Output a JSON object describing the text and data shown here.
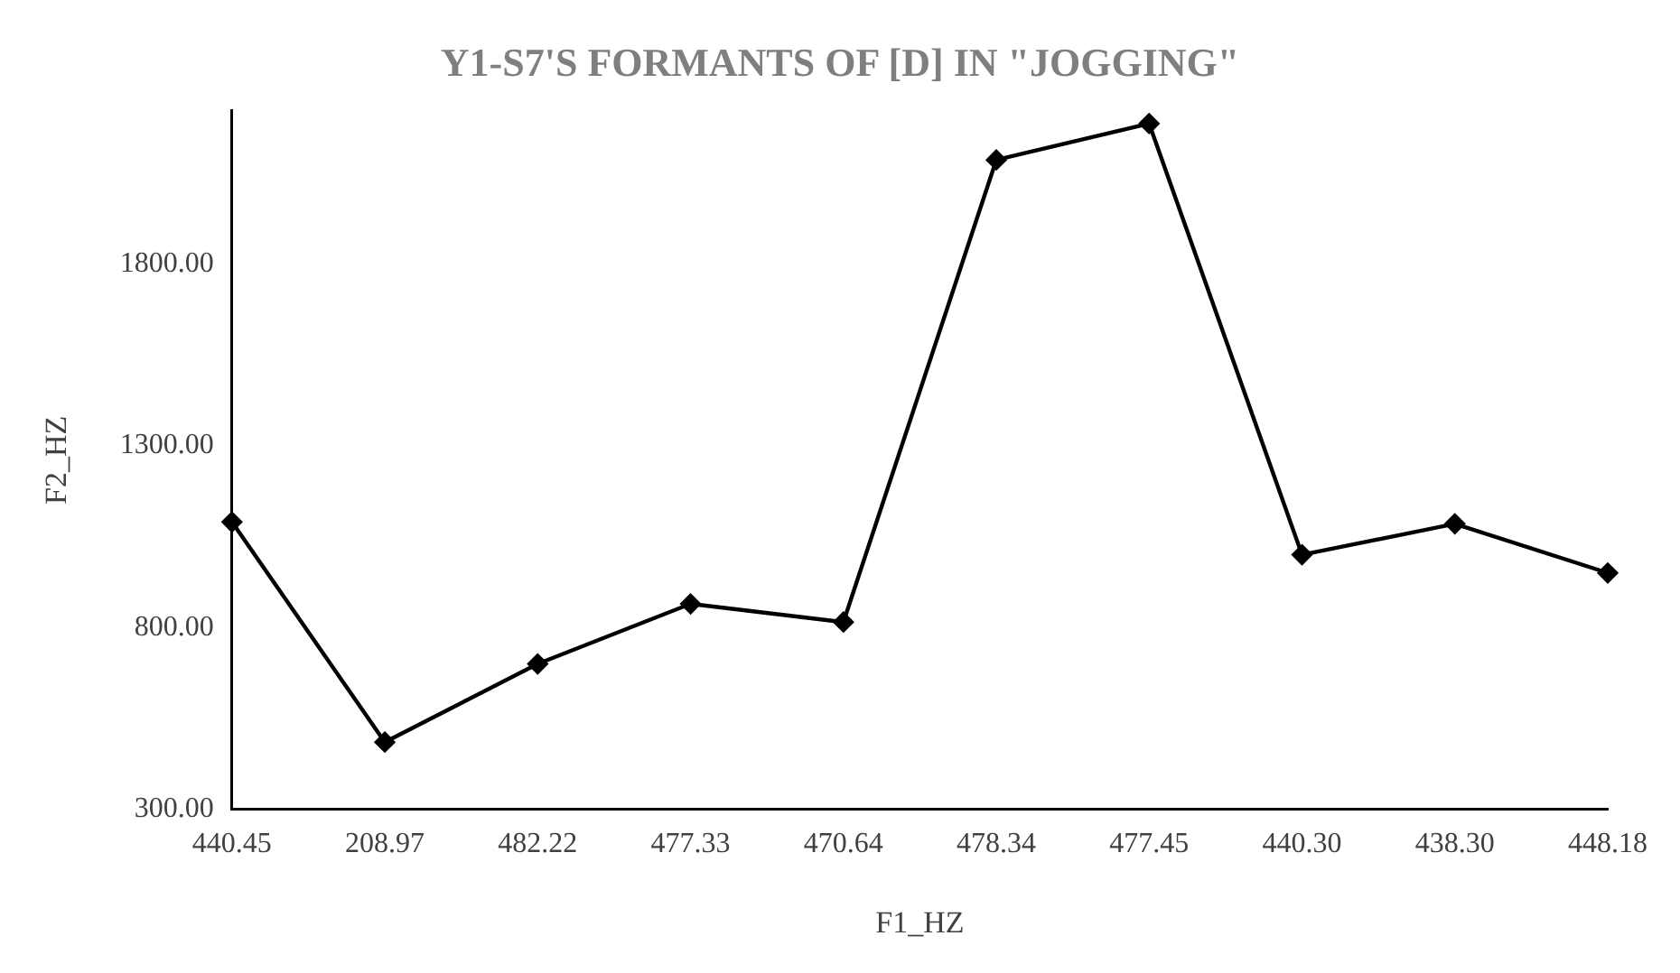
{
  "chart_data": {
    "type": "line",
    "title": "Y1-S7'S FORMANTS OF [D] IN \"JOGGING\"",
    "xlabel": "F1_HZ",
    "ylabel": "F2_HZ",
    "categories": [
      "440.45",
      "208.97",
      "482.22",
      "477.33",
      "470.64",
      "478.34",
      "477.45",
      "440.30",
      "438.30",
      "448.18"
    ],
    "series": [
      {
        "color": "#000000",
        "values": [
          1090,
          485,
          700,
          865,
          815,
          2085,
          2185,
          1000,
          1085,
          950
        ]
      }
    ],
    "ylim": [
      300,
      2220
    ],
    "yticks": [
      {
        "value": 300,
        "label": "300.00"
      },
      {
        "value": 800,
        "label": "800.00"
      },
      {
        "value": 1300,
        "label": "1300.00"
      },
      {
        "value": 1800,
        "label": "1800.00"
      }
    ],
    "grid": false,
    "legend": false,
    "marker": "diamond",
    "line_style": "solid"
  }
}
